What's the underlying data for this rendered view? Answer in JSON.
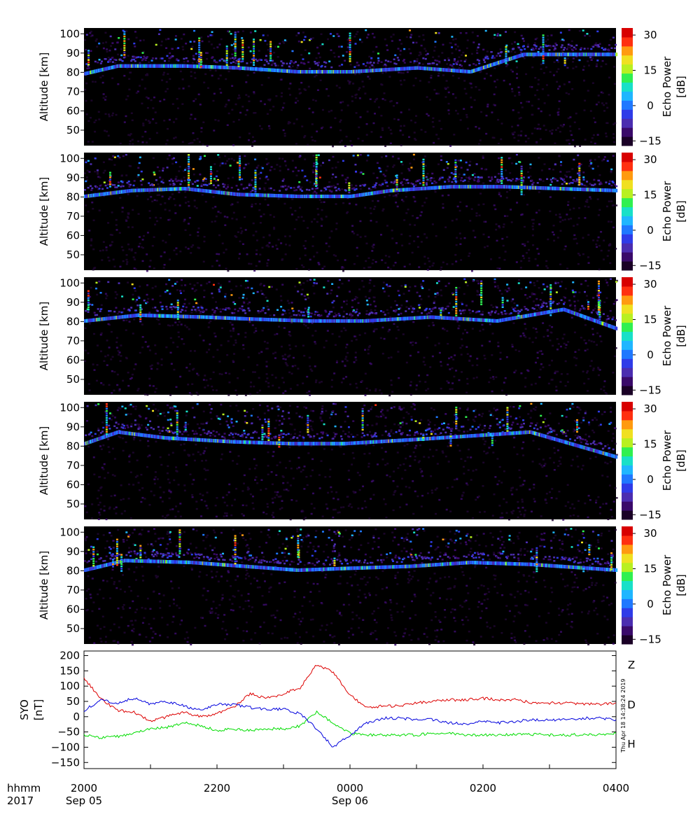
{
  "colorbar": {
    "label_line1": "Echo Power",
    "label_line2": "[dB]",
    "ticks": [
      30,
      15,
      0,
      -15
    ],
    "range": [
      -17,
      33
    ],
    "colors": [
      "#1a0026",
      "#3a0a6a",
      "#4b2db0",
      "#2f3be8",
      "#1f78ff",
      "#1fb6ff",
      "#18e0c8",
      "#30f050",
      "#b8f020",
      "#f0e020",
      "#ff9a10",
      "#ff3010",
      "#d80000"
    ]
  },
  "altitude_axis": {
    "label": "Altitude [km]",
    "ticks": [
      100,
      90,
      80,
      70,
      60,
      50
    ],
    "range": [
      42,
      103
    ]
  },
  "time_axis": {
    "header_left_line1": "hhmm",
    "header_left_line2": "2017",
    "ticks": [
      {
        "label": "2000",
        "hours": 0
      },
      {
        "label": "2200",
        "hours": 2
      },
      {
        "label": "0000",
        "hours": 4
      },
      {
        "label": "0200",
        "hours": 6
      },
      {
        "label": "0400",
        "hours": 8
      }
    ],
    "dates": [
      {
        "label": "Sep 05",
        "hours": 0
      },
      {
        "label": "Sep 06",
        "hours": 4
      }
    ]
  },
  "chart_data": [
    {
      "type": "heatmap",
      "panel": 1,
      "ylabel": "Altitude [km]",
      "zlabel": "Echo Power [dB]",
      "zlim": [
        -15,
        30
      ],
      "layer": [
        [
          0,
          79
        ],
        [
          0.5,
          83
        ],
        [
          1.5,
          83
        ],
        [
          2.3,
          82
        ],
        [
          3.2,
          80
        ],
        [
          4.0,
          80
        ],
        [
          5.0,
          82
        ],
        [
          5.8,
          80
        ],
        [
          6.6,
          89
        ],
        [
          8.0,
          89
        ]
      ]
    },
    {
      "type": "heatmap",
      "panel": 2,
      "ylabel": "Altitude [km]",
      "zlabel": "Echo Power [dB]",
      "zlim": [
        -15,
        30
      ],
      "layer": [
        [
          0,
          80
        ],
        [
          0.7,
          83
        ],
        [
          1.5,
          84
        ],
        [
          2.3,
          81
        ],
        [
          3.2,
          80
        ],
        [
          4.0,
          80
        ],
        [
          4.6,
          83
        ],
        [
          5.5,
          85
        ],
        [
          6.3,
          85
        ],
        [
          8.0,
          83
        ]
      ]
    },
    {
      "type": "heatmap",
      "panel": 3,
      "ylabel": "Altitude [km]",
      "zlabel": "Echo Power [dB]",
      "zlim": [
        -15,
        30
      ],
      "layer": [
        [
          0,
          80
        ],
        [
          0.8,
          83
        ],
        [
          1.8,
          82
        ],
        [
          2.5,
          81
        ],
        [
          3.4,
          80
        ],
        [
          4.2,
          80
        ],
        [
          5.2,
          82
        ],
        [
          6.2,
          80
        ],
        [
          7.2,
          86
        ],
        [
          8.0,
          76
        ]
      ]
    },
    {
      "type": "heatmap",
      "panel": 4,
      "ylabel": "Altitude [km]",
      "zlabel": "Echo Power [dB]",
      "zlim": [
        -15,
        30
      ],
      "layer": [
        [
          0,
          81
        ],
        [
          0.5,
          87
        ],
        [
          1.2,
          84
        ],
        [
          2.2,
          82
        ],
        [
          3.1,
          81
        ],
        [
          3.9,
          81
        ],
        [
          4.9,
          83
        ],
        [
          5.8,
          85
        ],
        [
          6.7,
          87
        ],
        [
          8.0,
          74
        ]
      ]
    },
    {
      "type": "heatmap",
      "panel": 5,
      "ylabel": "Altitude [km]",
      "zlabel": "Echo Power [dB]",
      "zlim": [
        -15,
        30
      ],
      "layer": [
        [
          0,
          80
        ],
        [
          0.6,
          85
        ],
        [
          1.6,
          84
        ],
        [
          2.4,
          82
        ],
        [
          3.2,
          80
        ],
        [
          4.0,
          81
        ],
        [
          4.9,
          82
        ],
        [
          5.8,
          84
        ],
        [
          6.7,
          83
        ],
        [
          8.0,
          80
        ]
      ]
    },
    {
      "type": "line",
      "ylabel_line1": "SYO",
      "ylabel_line2": "[nT]",
      "ylim": [
        -170,
        215
      ],
      "yticks": [
        200,
        150,
        100,
        50,
        0,
        -50,
        -100,
        -150
      ],
      "x_hours": [
        0,
        0.25,
        0.5,
        0.75,
        1,
        1.25,
        1.5,
        1.75,
        2,
        2.25,
        2.5,
        2.75,
        3,
        3.25,
        3.5,
        3.75,
        4,
        4.25,
        4.5,
        4.75,
        5,
        5.25,
        5.5,
        5.75,
        6,
        6.25,
        6.5,
        6.75,
        7,
        7.25,
        7.5,
        7.75,
        8
      ],
      "series": [
        {
          "name": "Z",
          "color": "#dd0000",
          "values": [
            125,
            60,
            20,
            15,
            -15,
            0,
            15,
            0,
            10,
            30,
            75,
            60,
            75,
            95,
            170,
            145,
            70,
            30,
            35,
            35,
            45,
            50,
            55,
            55,
            60,
            55,
            55,
            45,
            45,
            45,
            42,
            40,
            45
          ]
        },
        {
          "name": "D",
          "color": "#00dd00",
          "values": [
            -60,
            -70,
            -65,
            -55,
            -40,
            -35,
            -20,
            -30,
            -45,
            -40,
            -45,
            -40,
            -40,
            -30,
            15,
            -20,
            -55,
            -60,
            -60,
            -60,
            -60,
            -55,
            -55,
            -60,
            -60,
            -60,
            -58,
            -58,
            -60,
            -60,
            -58,
            -58,
            -55
          ]
        },
        {
          "name": "H",
          "color": "#0000dd",
          "values": [
            20,
            55,
            45,
            60,
            40,
            50,
            35,
            20,
            40,
            40,
            30,
            25,
            25,
            10,
            -40,
            -100,
            -60,
            -20,
            -5,
            -5,
            -10,
            -10,
            -20,
            -25,
            -15,
            -20,
            -15,
            -10,
            -10,
            -10,
            -5,
            -5,
            -10
          ]
        }
      ]
    }
  ],
  "timestamp": "Thu Apr 18 14:38:24 2019"
}
